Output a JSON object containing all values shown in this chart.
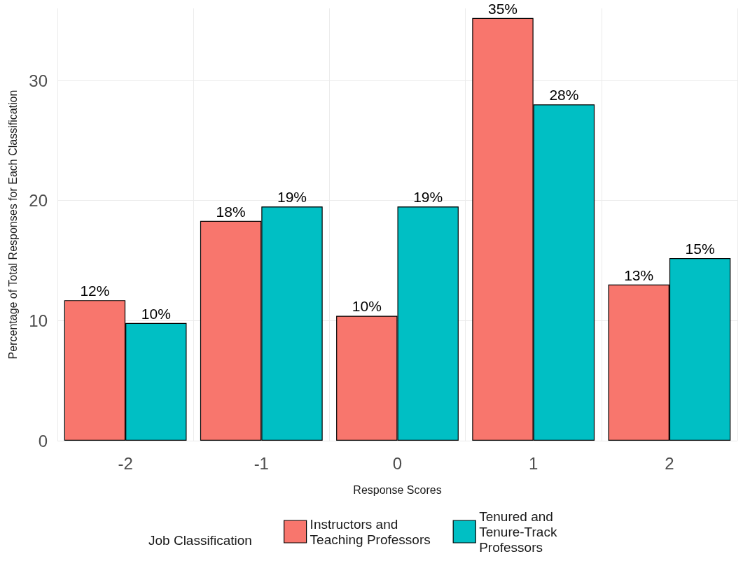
{
  "chart_data": {
    "type": "bar",
    "xlabel": "Response Scores",
    "ylabel": "Percentage of Total Responses for Each Classification",
    "legend_title": "Job Classification",
    "categories": [
      "-2",
      "-1",
      "0",
      "1",
      "2"
    ],
    "series": [
      {
        "name": "Instructors and Teaching Professors",
        "color": "#f8766d",
        "values": [
          11.7,
          18.3,
          10.4,
          35.2,
          13.0
        ],
        "value_labels": [
          "12%",
          "18%",
          "10%",
          "35%",
          "13%"
        ]
      },
      {
        "name": "Tenured and Tenure-Track Professors",
        "color": "#00bfc4",
        "values": [
          9.8,
          19.5,
          19.5,
          28.0,
          15.2
        ],
        "value_labels": [
          "10%",
          "19%",
          "19%",
          "28%",
          "15%"
        ]
      }
    ],
    "ylim": [
      0,
      36
    ],
    "yticks": [
      0,
      10,
      20,
      30
    ],
    "grid": true,
    "legend": "bottom"
  }
}
